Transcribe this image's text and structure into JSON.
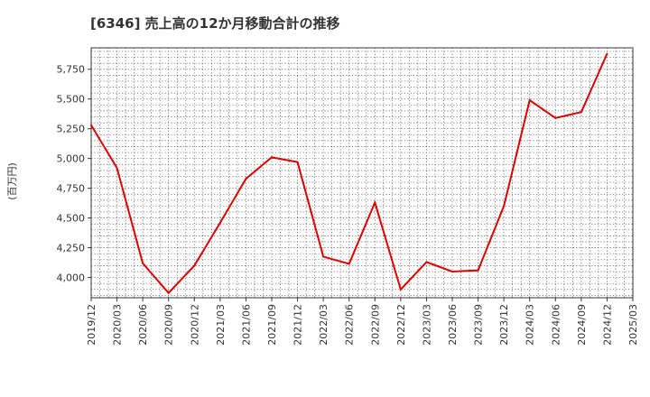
{
  "chart_data": {
    "type": "line",
    "title": "[6346]  売上高の12か月移動合計の推移",
    "xlabel": "",
    "ylabel": "(百万円)",
    "grid": true,
    "line_color": "#dd0000",
    "x": [
      "2019/12",
      "2020/03",
      "2020/06",
      "2020/09",
      "2020/12",
      "2021/03",
      "2021/06",
      "2021/09",
      "2021/12",
      "2022/03",
      "2022/06",
      "2022/09",
      "2022/12",
      "2023/03",
      "2023/06",
      "2023/09",
      "2023/12",
      "2024/03",
      "2024/06",
      "2024/09",
      "2024/12",
      "2025/03"
    ],
    "series": [
      {
        "name": "売上高の12か月移動合計",
        "values": [
          5280,
          4920,
          4120,
          3870,
          4100,
          4460,
          4830,
          5010,
          4970,
          4175,
          4115,
          4630,
          3900,
          4130,
          4050,
          4060,
          4600,
          5490,
          5340,
          5390,
          5880,
          null
        ]
      }
    ],
    "yticks": [
      4000,
      4250,
      4500,
      4750,
      5000,
      5250,
      5500,
      5750
    ],
    "ytick_labels": [
      "4,000",
      "4,250",
      "4,500",
      "4,750",
      "5,000",
      "5,250",
      "5,500",
      "5,750"
    ],
    "ylim": [
      3830,
      5930
    ]
  }
}
